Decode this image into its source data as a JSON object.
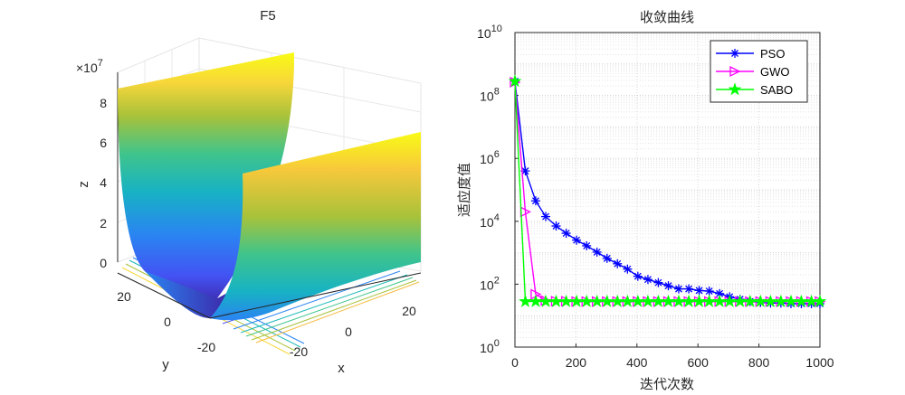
{
  "chart_data": [
    {
      "type": "surface3d",
      "title": "F5",
      "xlabel": "x",
      "ylabel": "y",
      "zlabel": "z",
      "z_exponent_label": "×10",
      "z_exponent_power": "7",
      "x_ticks": [
        "-20",
        "0",
        "20"
      ],
      "y_ticks": [
        "20",
        "0",
        "-20"
      ],
      "z_ticks": [
        "8",
        "6",
        "4",
        "2",
        "0"
      ],
      "z_tick_values": [
        8,
        6,
        4,
        2,
        0
      ],
      "xlim": [
        -30,
        30
      ],
      "ylim": [
        -30,
        30
      ],
      "zlim": [
        0,
        8.5
      ],
      "colormap": [
        "#3e26a8",
        "#4353f3",
        "#2a84f2",
        "#12a6d7",
        "#1ab8b8",
        "#3fc48c",
        "#a2c23a",
        "#f7ba3c",
        "#f9d83b",
        "#f9fb15"
      ]
    },
    {
      "type": "line",
      "title": "收敛曲线",
      "xlabel": "迭代次数",
      "ylabel": "适应度值",
      "yscale": "log",
      "xlim": [
        0,
        1000
      ],
      "ylim_exp": [
        0,
        10
      ],
      "x_ticks": [
        "0",
        "200",
        "400",
        "600",
        "800",
        "1000"
      ],
      "x_tick_values": [
        0,
        200,
        400,
        600,
        800,
        1000
      ],
      "y_tick_exponents": [
        "0",
        "2",
        "4",
        "6",
        "8",
        "10"
      ],
      "y_tick_base": "10",
      "grid": true,
      "legend_position": "top-right",
      "series": [
        {
          "name": "PSO",
          "color": "#0000ff",
          "marker": "asterisk",
          "x": [
            0,
            34,
            68,
            101,
            135,
            168,
            202,
            235,
            269,
            302,
            336,
            369,
            403,
            436,
            470,
            503,
            537,
            570,
            604,
            637,
            671,
            704,
            738,
            771,
            805,
            838,
            872,
            905,
            939,
            972,
            1000
          ],
          "y_log10": [
            8.45,
            5.6,
            4.65,
            4.15,
            3.85,
            3.62,
            3.4,
            3.22,
            3.02,
            2.82,
            2.65,
            2.48,
            2.25,
            2.15,
            2.05,
            1.95,
            1.85,
            1.85,
            1.8,
            1.78,
            1.7,
            1.6,
            1.52,
            1.45,
            1.42,
            1.4,
            1.4,
            1.38,
            1.38,
            1.38,
            1.38
          ]
        },
        {
          "name": "GWO",
          "color": "#ff00ff",
          "marker": "triangle-right",
          "x": [
            0,
            34,
            68,
            101,
            135,
            168,
            202,
            235,
            269,
            302,
            336,
            369,
            403,
            436,
            470,
            503,
            537,
            570,
            604,
            637,
            671,
            704,
            738,
            771,
            805,
            838,
            872,
            905,
            939,
            972,
            1000
          ],
          "y_log10": [
            8.42,
            4.3,
            1.68,
            1.48,
            1.46,
            1.46,
            1.45,
            1.45,
            1.45,
            1.45,
            1.45,
            1.45,
            1.45,
            1.45,
            1.45,
            1.45,
            1.45,
            1.45,
            1.45,
            1.45,
            1.45,
            1.45,
            1.45,
            1.45,
            1.45,
            1.45,
            1.45,
            1.45,
            1.45,
            1.45,
            1.45
          ]
        },
        {
          "name": "SABO",
          "color": "#00ff00",
          "marker": "pentagram",
          "x": [
            0,
            34,
            68,
            101,
            135,
            168,
            202,
            235,
            269,
            302,
            336,
            369,
            403,
            436,
            470,
            503,
            537,
            570,
            604,
            637,
            671,
            704,
            738,
            771,
            805,
            838,
            872,
            905,
            939,
            972,
            1000
          ],
          "y_log10": [
            8.45,
            1.45,
            1.45,
            1.45,
            1.45,
            1.45,
            1.45,
            1.45,
            1.45,
            1.45,
            1.45,
            1.45,
            1.45,
            1.45,
            1.45,
            1.45,
            1.45,
            1.45,
            1.45,
            1.45,
            1.45,
            1.45,
            1.45,
            1.45,
            1.45,
            1.45,
            1.45,
            1.45,
            1.45,
            1.45,
            1.45
          ]
        }
      ]
    }
  ]
}
